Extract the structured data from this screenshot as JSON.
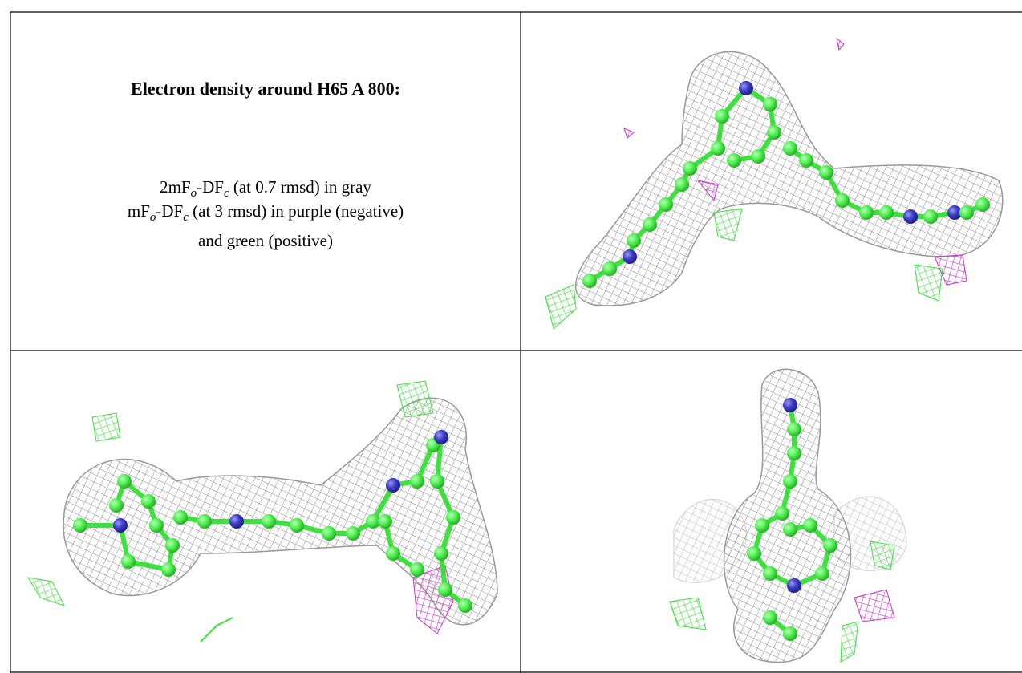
{
  "caption": {
    "title": "Electron density around H65 A 800:",
    "lines": [
      {
        "parts": [
          "2mF",
          "o",
          "-DF",
          "c",
          " (at 0.7 rmsd) in gray"
        ]
      },
      {
        "parts": [
          "mF",
          "o",
          "-DF",
          "c",
          " (at 3 rmsd) in purple (negative)"
        ]
      },
      {
        "parts": [
          "and green (positive)"
        ]
      }
    ]
  }
}
